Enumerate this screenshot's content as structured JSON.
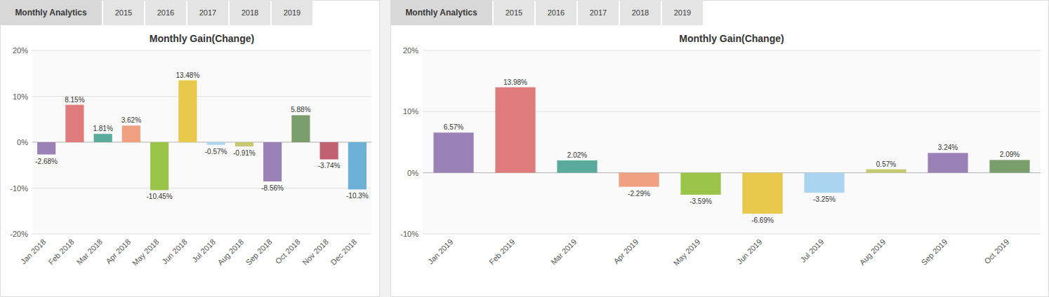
{
  "chart_data": [
    {
      "type": "bar",
      "title": "Monthly Gain(Change)",
      "annotations": [
        "Monthly Analytics",
        "2015",
        "2016",
        "2017",
        "2018",
        "2019"
      ],
      "categories": [
        "Jan 2018",
        "Feb 2018",
        "Mar 2018",
        "Apr 2018",
        "May 2018",
        "Jun 2018",
        "Jul 2018",
        "Aug 2018",
        "Sep 2018",
        "Oct 2018",
        "Nov 2018",
        "Dec 2018"
      ],
      "values": [
        -2.68,
        8.15,
        1.81,
        3.62,
        -10.45,
        13.48,
        -0.57,
        -0.91,
        -8.56,
        5.88,
        -3.74,
        -10.3
      ],
      "value_labels": [
        "-2.68%",
        "8.15%",
        "1.81%",
        "3.62%",
        "-10.45%",
        "13.48%",
        "-0.57%",
        "-0.91%",
        "-8.56%",
        "5.88%",
        "-3.74%",
        "-10.3%"
      ],
      "colors": [
        "#9b82b6",
        "#e07b7b",
        "#5aab9b",
        "#f0a080",
        "#9bc44a",
        "#e8c84a",
        "#aad4f0",
        "#c8c870",
        "#9b82b6",
        "#7a9e6b",
        "#c06070",
        "#6db0d8"
      ],
      "ylim": [
        -20,
        20
      ],
      "yticks": [
        {
          "value": -20,
          "label": "-20%"
        },
        {
          "value": -10,
          "label": "-10%"
        },
        {
          "value": 0,
          "label": "0%"
        },
        {
          "value": 10,
          "label": "10%"
        },
        {
          "value": 20,
          "label": "20%"
        }
      ],
      "grid": true,
      "data_labels": true
    },
    {
      "type": "bar",
      "title": "Monthly Gain(Change)",
      "annotations": [
        "Monthly Analytics",
        "2015",
        "2016",
        "2017",
        "2018",
        "2019"
      ],
      "categories": [
        "Jan 2019",
        "Feb 2019",
        "Mar 2019",
        "Apr 2019",
        "May 2019",
        "Jun 2019",
        "Jul 2019",
        "Aug 2019",
        "Sep 2019",
        "Oct 2019"
      ],
      "values": [
        6.57,
        13.98,
        2.02,
        -2.29,
        -3.59,
        -6.69,
        -3.25,
        0.57,
        3.24,
        2.09
      ],
      "value_labels": [
        "6.57%",
        "13.98%",
        "2.02%",
        "-2.29%",
        "-3.59%",
        "-6.69%",
        "-3.25%",
        "0.57%",
        "3.24%",
        "2.09%"
      ],
      "colors": [
        "#9b82b6",
        "#e07b7b",
        "#5aab9b",
        "#f0a080",
        "#9bc44a",
        "#e8c84a",
        "#aad4f0",
        "#c8c870",
        "#9b82b6",
        "#7a9e6b"
      ],
      "ylim": [
        -10,
        20
      ],
      "yticks": [
        {
          "value": -10,
          "label": "-10%"
        },
        {
          "value": 0,
          "label": "0%"
        },
        {
          "value": 10,
          "label": "10%"
        },
        {
          "value": 20,
          "label": "20%"
        }
      ],
      "grid": true,
      "data_labels": true
    }
  ]
}
